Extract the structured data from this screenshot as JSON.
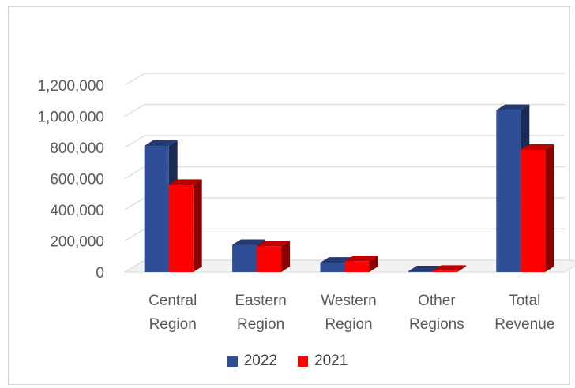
{
  "chart_data": {
    "type": "bar",
    "style": "3d-clustered-column",
    "categories": [
      [
        "Central",
        "Region"
      ],
      [
        "Eastern",
        "Region"
      ],
      [
        "Western",
        "Region"
      ],
      [
        "Other",
        "Regions"
      ],
      [
        "Total",
        "Revenue"
      ]
    ],
    "series": [
      {
        "name": "2022",
        "color": "#2e4f96",
        "values": [
          810000,
          175000,
          60000,
          5000,
          1040000
        ]
      },
      {
        "name": "2021",
        "color": "#ff0000",
        "values": [
          560000,
          165000,
          70000,
          8000,
          785000
        ]
      }
    ],
    "y_ticks": [
      "0",
      "200,000",
      "400,000",
      "600,000",
      "800,000",
      "1,000,000",
      "1,200,000"
    ],
    "ylim": [
      0,
      1200000
    ],
    "grid": true,
    "legend_position": "bottom"
  }
}
